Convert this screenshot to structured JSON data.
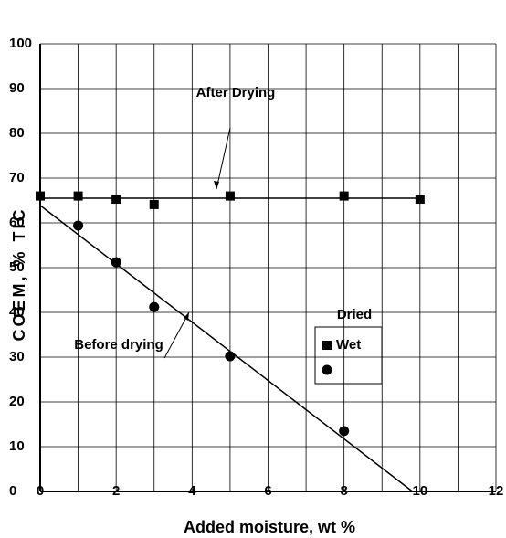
{
  "chart_data": {
    "type": "scatter",
    "xlabel": "Added moisture, wt %",
    "ylabel": "COEM, % TIC",
    "xlim": [
      0,
      12
    ],
    "xticks": [
      0,
      2,
      4,
      6,
      8,
      10,
      12
    ],
    "ylim": [
      0,
      100
    ],
    "yticks": [
      0,
      10,
      20,
      30,
      40,
      50,
      60,
      70,
      80,
      90,
      100
    ],
    "grid": true,
    "legend_title": "Dried",
    "series": [
      {
        "name": "Wet",
        "marker": "square",
        "color": "#000000",
        "x": [
          0,
          1,
          2,
          3,
          5,
          8,
          10
        ],
        "values": [
          66,
          66,
          65.3,
          64.1,
          66,
          66,
          65.3
        ]
      },
      {
        "marker": "circle",
        "color": "#000000",
        "x": [
          1,
          2,
          3,
          5,
          8
        ],
        "values": [
          59.4,
          51.2,
          41.2,
          30.2,
          13.5
        ]
      }
    ],
    "fit_lines": [
      {
        "x": [
          0,
          10
        ],
        "values": [
          65.5,
          65.5
        ]
      },
      {
        "x": [
          0,
          9.8
        ],
        "values": [
          63.9,
          0
        ]
      }
    ],
    "annotations": [
      "After Drying",
      "Before drying"
    ]
  }
}
